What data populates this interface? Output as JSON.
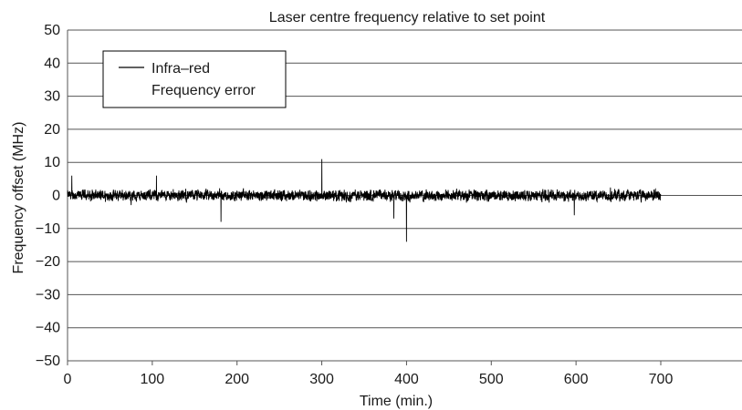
{
  "chart_data": {
    "type": "line",
    "title": "Laser centre frequency relative to set point",
    "xlabel": "Time (min.)",
    "ylabel": "Frequency offset (MHz)",
    "xlim": [
      0,
      700
    ],
    "ylim": [
      -50,
      50
    ],
    "x_ticks": [
      0,
      100,
      200,
      300,
      400,
      500,
      600,
      700
    ],
    "y_ticks": [
      50,
      40,
      30,
      20,
      10,
      0,
      -10,
      -20,
      -30,
      -40,
      -50
    ],
    "x_tick_labels": [
      "0",
      "100",
      "200",
      "300",
      "400",
      "500",
      "600",
      "700"
    ],
    "y_tick_labels": [
      "50",
      "40",
      "30",
      "20",
      "10",
      "0",
      "−10",
      "−20",
      "−30",
      "−40",
      "−50"
    ],
    "grid": "horizontal",
    "legend_position": "top-left",
    "series": [
      {
        "name": "Infra–red Frequency error",
        "legend_lines": [
          "Infra–red",
          "Frequency error"
        ],
        "color": "#000000",
        "noise_amplitude_mhz": 2.5,
        "key_points": [
          {
            "x": 0,
            "y": 0.5
          },
          {
            "x": 5,
            "y": 6
          },
          {
            "x": 105,
            "y": 6
          },
          {
            "x": 181,
            "y": -8
          },
          {
            "x": 300,
            "y": 11
          },
          {
            "x": 385,
            "y": -7
          },
          {
            "x": 400,
            "y": -14
          },
          {
            "x": 598,
            "y": -6
          },
          {
            "x": 700,
            "y": 0
          }
        ]
      }
    ]
  }
}
